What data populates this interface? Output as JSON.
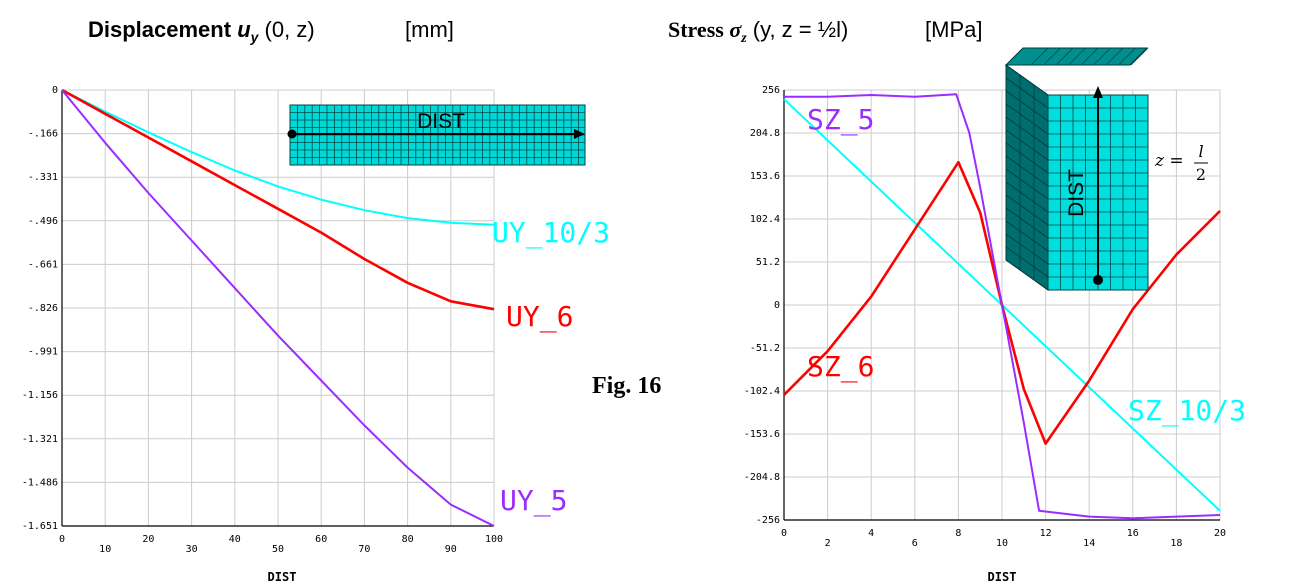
{
  "titles": {
    "left": {
      "word": "Displacement",
      "var": "u",
      "sub": "y",
      "args": " (0, z)",
      "unit": "[mm]"
    },
    "right": {
      "word": "Stress",
      "var": "σ",
      "sub": "z",
      "args": " (y, z = ½l)",
      "unit": "[MPa]"
    }
  },
  "figure_label": "Fig. 16",
  "insets": {
    "left_label": "DIST",
    "right_label": "DIST",
    "right_formula": {
      "lhs": "z =",
      "num": "l",
      "den": "2"
    }
  },
  "colors": {
    "cyan": "#00ffff",
    "red": "#ff0000",
    "purple": "#9b2cff",
    "grid": "#cccccc",
    "mesh": "#00b5b5"
  },
  "chart_data": [
    {
      "type": "line",
      "xlabel": "DIST",
      "ylabel": "",
      "xlim": [
        0,
        100
      ],
      "ylim": [
        -1.651,
        0
      ],
      "xticks": [
        "0",
        "10",
        "20",
        "30",
        "40",
        "50",
        "60",
        "70",
        "80",
        "90",
        "100"
      ],
      "yticks": [
        "0",
        "-.166",
        "-.331",
        "-.496",
        "-.661",
        "-.826",
        "-.991",
        "-1.156",
        "-1.321",
        "-1.486",
        "-1.651"
      ],
      "grid": true,
      "series": [
        {
          "name": "UY_10/3",
          "color": "#00ffff",
          "x": [
            0,
            10,
            20,
            30,
            40,
            50,
            60,
            70,
            80,
            90,
            100
          ],
          "values": [
            0,
            -0.082,
            -0.16,
            -0.235,
            -0.305,
            -0.365,
            -0.415,
            -0.455,
            -0.485,
            -0.503,
            -0.51
          ]
        },
        {
          "name": "UY_6",
          "color": "#ff0000",
          "x": [
            0,
            10,
            20,
            30,
            40,
            50,
            60,
            70,
            80,
            90,
            100
          ],
          "values": [
            0,
            -0.09,
            -0.18,
            -0.27,
            -0.36,
            -0.45,
            -0.54,
            -0.64,
            -0.73,
            -0.8,
            -0.83
          ]
        },
        {
          "name": "UY_5",
          "color": "#9b2cff",
          "x": [
            0,
            10,
            20,
            30,
            40,
            50,
            60,
            70,
            80,
            90,
            100
          ],
          "values": [
            0,
            -0.2,
            -0.39,
            -0.57,
            -0.75,
            -0.93,
            -1.1,
            -1.27,
            -1.43,
            -1.57,
            -1.651
          ]
        }
      ]
    },
    {
      "type": "line",
      "xlabel": "DIST",
      "ylabel": "",
      "xlim": [
        0,
        20
      ],
      "ylim": [
        -256,
        256
      ],
      "xticks": [
        "0",
        "2",
        "4",
        "6",
        "8",
        "10",
        "12",
        "14",
        "16",
        "18",
        "20"
      ],
      "yticks": [
        "256",
        "204.8",
        "153.6",
        "102.4",
        "51.2",
        "0",
        "-51.2",
        "-102.4",
        "-153.6",
        "-204.8",
        "-256"
      ],
      "grid": true,
      "series": [
        {
          "name": "SZ_10/3",
          "color": "#00ffff",
          "x": [
            0,
            20
          ],
          "values": [
            245,
            -245
          ]
        },
        {
          "name": "SZ_6",
          "color": "#ff0000",
          "x": [
            0,
            2,
            4,
            6,
            8,
            9,
            10,
            11,
            12,
            14,
            16,
            18,
            20
          ],
          "values": [
            -107,
            -55,
            10,
            90,
            170,
            110,
            0,
            -100,
            -165,
            -90,
            -5,
            60,
            112
          ]
        },
        {
          "name": "SZ_5",
          "color": "#9b2cff",
          "x": [
            0,
            2,
            4,
            6,
            7.9,
            8.5,
            9,
            10,
            11,
            11.7,
            14,
            16,
            20
          ],
          "values": [
            248,
            248,
            250,
            248,
            251,
            205,
            140,
            0,
            -140,
            -245,
            -252,
            -254,
            -250
          ]
        }
      ]
    }
  ]
}
